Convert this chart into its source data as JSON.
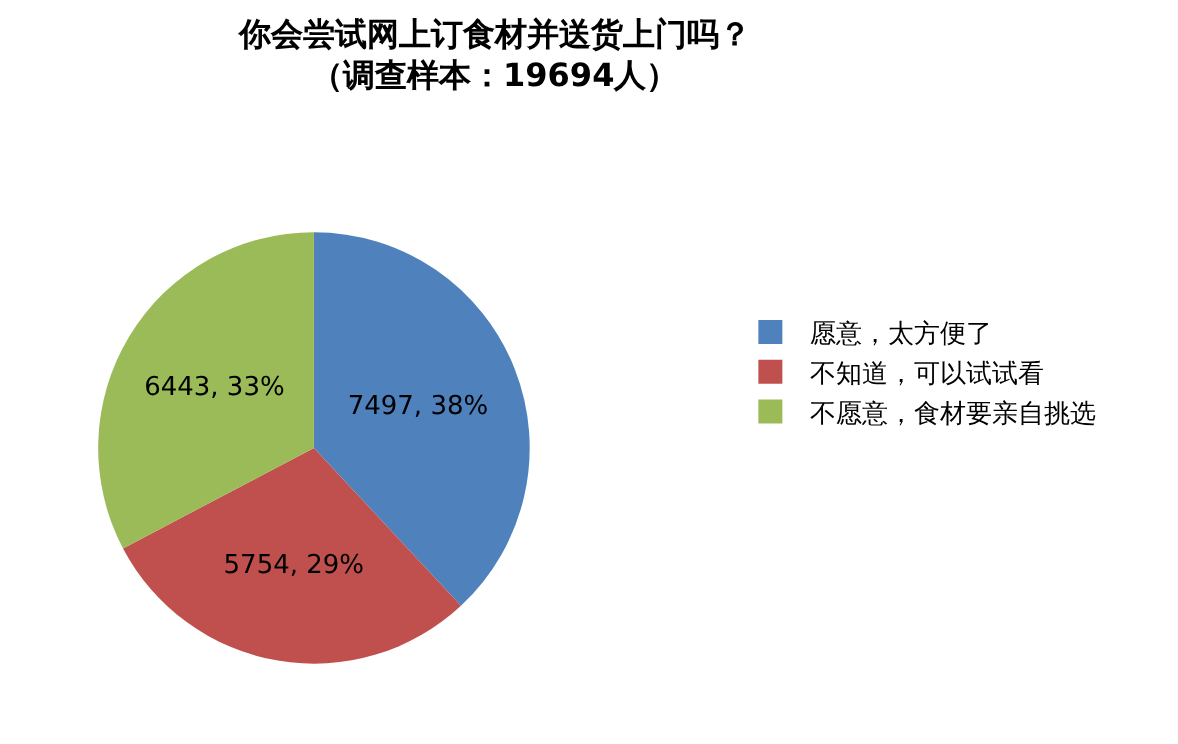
{
  "chart_data": {
    "type": "pie",
    "title": "你会尝试网上订食材并送货上门吗？",
    "subtitle": "（调查样本：19694人）",
    "categories": [
      "愿意，太方便了",
      "不知道，可以试试看",
      "不愿意，食材要亲自挑选"
    ],
    "values": [
      7497,
      5754,
      6443
    ],
    "colors": [
      "#4f81bd",
      "#c0504d",
      "#9bbb59"
    ],
    "value_labels": [
      "7497, 38%",
      "5754, 29%",
      "6443, 33%"
    ],
    "legend": "right"
  }
}
